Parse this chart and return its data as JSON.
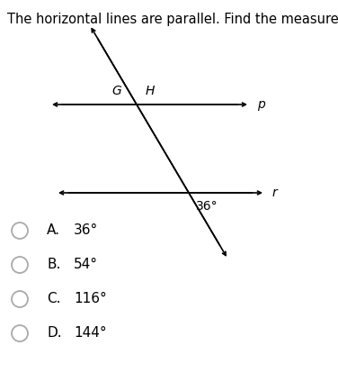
{
  "title": "The horizontal lines are parallel. Find the measure of ∠G.",
  "title_fontsize": 10.5,
  "bg_color": "#ffffff",
  "fig_width": 3.76,
  "fig_height": 4.24,
  "dpi": 100,
  "label_G": "G",
  "label_H": "H",
  "label_p": "p",
  "label_r": "r",
  "angle_label": "36°",
  "choice_letters": [
    "A.",
    "B.",
    "C.",
    "D."
  ],
  "choice_values": [
    "36°",
    "54°",
    "116°",
    "144°"
  ],
  "choice_font_size": 11,
  "arrow_color": "#000000",
  "text_color": "#000000",
  "circle_color": "#aaaaaa"
}
